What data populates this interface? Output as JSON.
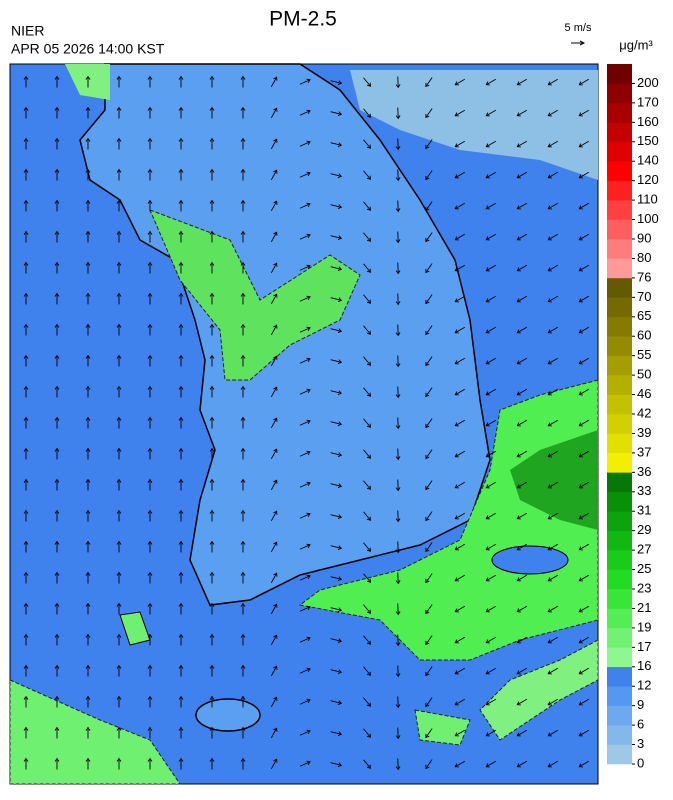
{
  "header": {
    "org": "NIER",
    "timestamp": "APR 05 2026 14:00 KST",
    "title": "PM-2.5",
    "wind_scale": "5 m/s"
  },
  "colorbar": {
    "unit": "μg/m³",
    "ticks": [
      0,
      3,
      6,
      9,
      12,
      16,
      17,
      19,
      21,
      23,
      25,
      27,
      29,
      31,
      33,
      36,
      37,
      39,
      42,
      46,
      50,
      55,
      60,
      65,
      70,
      76,
      80,
      90,
      100,
      110,
      120,
      140,
      150,
      160,
      170,
      200
    ],
    "colors": [
      "#9dc8e6",
      "#82b8ea",
      "#6ca9ef",
      "#5598ef",
      "#3f82ee",
      "#8ff78f",
      "#72f272",
      "#55ed55",
      "#38e638",
      "#22db22",
      "#1acb1a",
      "#12b812",
      "#0ca40c",
      "#089008",
      "#067806",
      "#f2f000",
      "#e2e000",
      "#d2d000",
      "#c4c200",
      "#b4b000",
      "#a49e00",
      "#948c00",
      "#847b00",
      "#746a00",
      "#645a00",
      "#ff9a9a",
      "#ff7c7c",
      "#ff5e5e",
      "#ff4040",
      "#ff2020",
      "#ff0000",
      "#e00000",
      "#c40000",
      "#a80000",
      "#8c0000",
      "#6e0000"
    ]
  }
}
